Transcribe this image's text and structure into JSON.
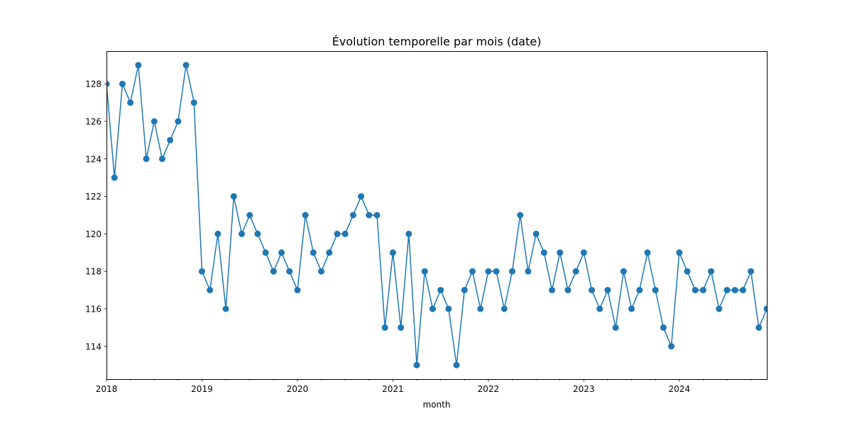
{
  "chart_data": {
    "type": "line",
    "title": "Évolution temporelle par mois (date)",
    "xlabel": "month",
    "ylabel": "",
    "marker": "circle",
    "series_color": "#1f77b4",
    "grid": false,
    "start_month": "2018-01",
    "x_ticks": [
      "2018",
      "2019",
      "2020",
      "2021",
      "2022",
      "2023",
      "2024"
    ],
    "y_ticks": [
      114,
      116,
      118,
      120,
      122,
      124,
      126,
      128
    ],
    "ylim": [
      112.25,
      129.75
    ],
    "series": [
      {
        "values": [
          128,
          123,
          128,
          127,
          129,
          124,
          126,
          124,
          125,
          126,
          129,
          127,
          118,
          117,
          120,
          116,
          122,
          120,
          121,
          120,
          119,
          118,
          119,
          118,
          117,
          121,
          119,
          118,
          119,
          120,
          120,
          121,
          122,
          121,
          121,
          115,
          119,
          115,
          120,
          113,
          118,
          116,
          117,
          116,
          113,
          117,
          118,
          116,
          118,
          118,
          116,
          118,
          121,
          118,
          120,
          119,
          117,
          119,
          117,
          118,
          119,
          117,
          116,
          117,
          115,
          118,
          116,
          117,
          119,
          117,
          115,
          114,
          119,
          118,
          117,
          117,
          118,
          116,
          117,
          117,
          117,
          118,
          115,
          116
        ]
      }
    ]
  }
}
